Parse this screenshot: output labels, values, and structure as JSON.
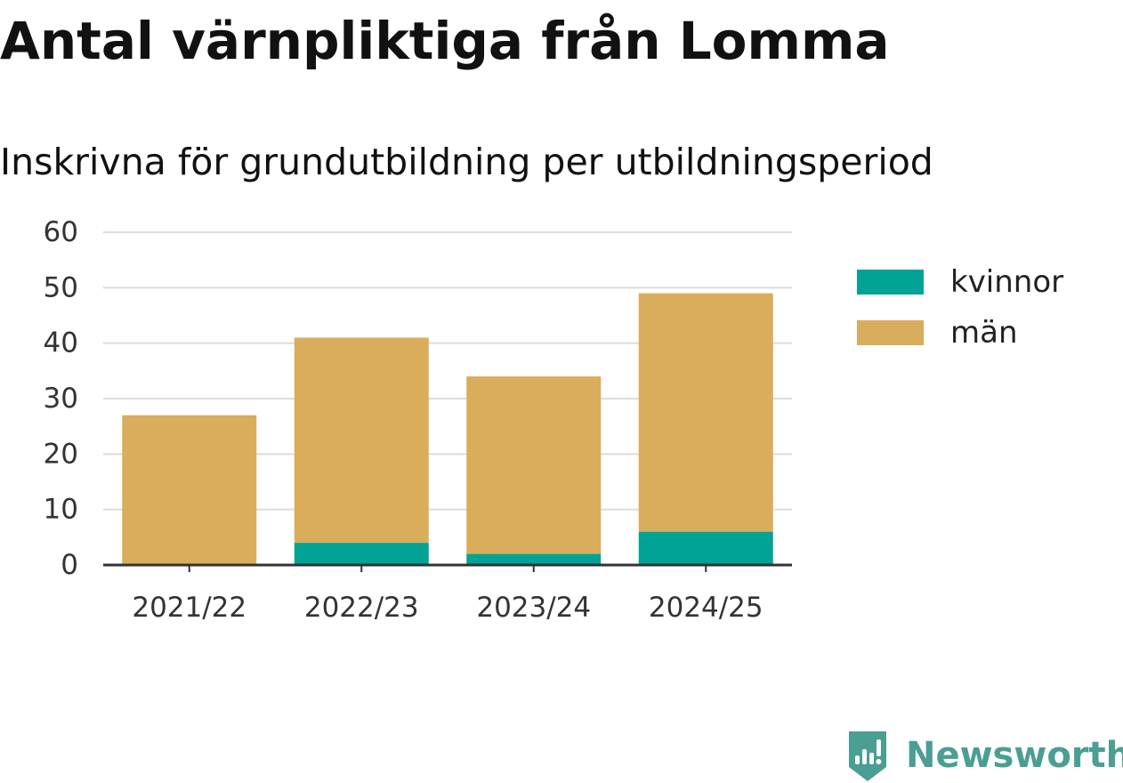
{
  "title": "Antal värnpliktiga från Lomma",
  "subtitle": "Inskrivna för grundutbildning per utbildningsperiod",
  "brand": {
    "name": "Newsworthy",
    "icon": "newsworthy-logo-icon",
    "color": "#4a9e93"
  },
  "chart_data": {
    "type": "bar",
    "stacked": true,
    "categories": [
      "2021/22",
      "2022/23",
      "2023/24",
      "2024/25"
    ],
    "series": [
      {
        "name": "kvinnor",
        "color": "#00a396",
        "values": [
          0,
          4,
          2,
          6
        ]
      },
      {
        "name": "män",
        "color": "#d9ad5b",
        "values": [
          27,
          37,
          32,
          43
        ]
      }
    ],
    "ylim": [
      0,
      60
    ],
    "yticks": [
      0,
      10,
      20,
      30,
      40,
      50,
      60
    ],
    "grid": true,
    "legend_position": "right",
    "xlabel": "",
    "ylabel": ""
  }
}
